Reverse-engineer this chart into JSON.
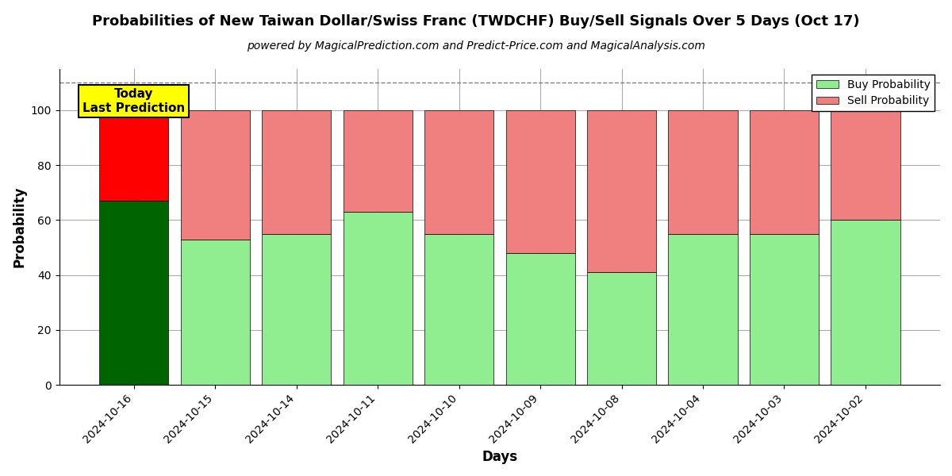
{
  "title": "Probabilities of New Taiwan Dollar/Swiss Franc (TWDCHF) Buy/Sell Signals Over 5 Days (Oct 17)",
  "subtitle": "powered by MagicalPrediction.com and Predict-Price.com and MagicalAnalysis.com",
  "xlabel": "Days",
  "ylabel": "Probability",
  "categories": [
    "2024-10-16",
    "2024-10-15",
    "2024-10-14",
    "2024-10-11",
    "2024-10-10",
    "2024-10-09",
    "2024-10-08",
    "2024-10-04",
    "2024-10-03",
    "2024-10-02"
  ],
  "buy_values": [
    67,
    53,
    55,
    63,
    55,
    48,
    41,
    55,
    55,
    60
  ],
  "sell_values": [
    33,
    47,
    45,
    37,
    45,
    52,
    59,
    45,
    45,
    40
  ],
  "today_buy_color": "#006400",
  "today_sell_color": "#FF0000",
  "buy_color": "#90EE90",
  "sell_color": "#F08080",
  "today_label_bg": "#FFFF00",
  "today_label_text": "Today\nLast Prediction",
  "legend_buy": "Buy Probability",
  "legend_sell": "Sell Probability",
  "ylim": [
    0,
    115
  ],
  "yticks": [
    0,
    20,
    40,
    60,
    80,
    100
  ],
  "dashed_line_y": 110,
  "background_color": "#ffffff",
  "grid_color": "#aaaaaa",
  "bar_width": 0.85
}
